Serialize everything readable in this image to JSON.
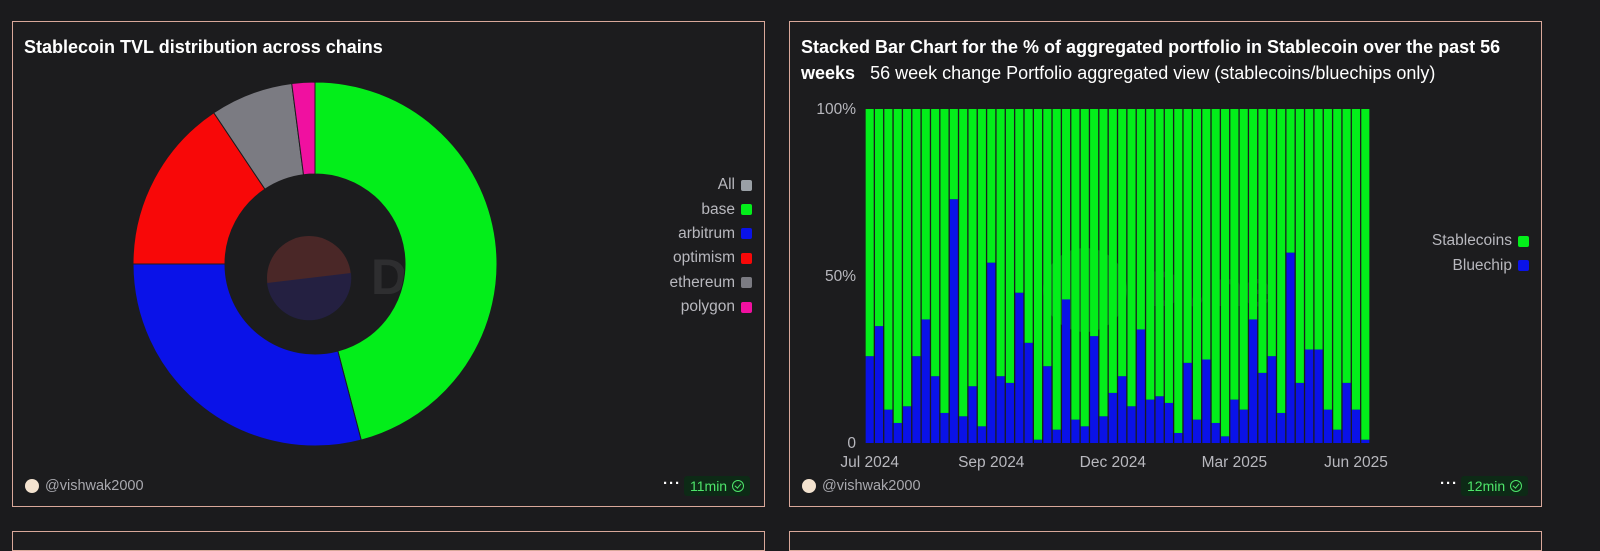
{
  "colors": {
    "background": "#1b1b1d",
    "card_border": "#d9a89a",
    "badge_text": "#4ee56a",
    "stablecoins": "#03ee1a",
    "bluechip": "#0a12e8"
  },
  "left_card": {
    "title": "Stablecoin TVL distribution across chains",
    "watermark": "Dune",
    "legend": [
      {
        "label": "All",
        "color": "#9aa0a6"
      },
      {
        "label": "base",
        "color": "#03ee1a"
      },
      {
        "label": "arbitrum",
        "color": "#0a12e8"
      },
      {
        "label": "optimism",
        "color": "#f80808"
      },
      {
        "label": "ethereum",
        "color": "#7b7b82"
      },
      {
        "label": "polygon",
        "color": "#f010a0"
      }
    ],
    "footer": {
      "author": "@vishwak2000",
      "more_icon": "more-horizontal-icon",
      "time": "11min"
    }
  },
  "right_card": {
    "title": "Stacked Bar Chart for the % of aggregated portfolio in Stablecoin over the past 56 weeks",
    "subtitle": "56 week change Portfolio aggregated view (stablecoins/bluechips only)",
    "watermark": "Dune",
    "legend": [
      {
        "label": "Stablecoins",
        "color": "#03ee1a"
      },
      {
        "label": "Bluechip",
        "color": "#0a12e8"
      }
    ],
    "footer": {
      "author": "@vishwak2000",
      "more_icon": "more-horizontal-icon",
      "time": "12min"
    }
  },
  "chart_data": [
    {
      "type": "pie",
      "title": "Stablecoin TVL distribution across chains",
      "donut": true,
      "categories": [
        "All",
        "base",
        "arbitrum",
        "optimism",
        "ethereum",
        "polygon"
      ],
      "values": [
        0,
        45.0,
        28.5,
        15.3,
        7.2,
        2.0
      ],
      "colors": [
        "#9aa0a6",
        "#03ee1a",
        "#0a12e8",
        "#f80808",
        "#7b7b82",
        "#f010a0"
      ],
      "legend_position": "right"
    },
    {
      "type": "bar",
      "stacked": true,
      "title": "Stacked Bar Chart for the % of aggregated portfolio in Stablecoin over the past 56 weeks",
      "x_tick_labels": [
        "Jul 2024",
        "Sep 2024",
        "Dec 2024",
        "Mar 2025",
        "Jun 2025"
      ],
      "x_tick_bar_index": [
        0,
        13,
        26,
        39,
        52
      ],
      "y_tick_labels": [
        "0",
        "50%",
        "100%"
      ],
      "ylim": [
        0,
        100
      ],
      "series": [
        {
          "name": "Bluechip",
          "color": "#0a12e8",
          "values": [
            26,
            35,
            10,
            6,
            11,
            26,
            37,
            20,
            9,
            73,
            8,
            17,
            5,
            54,
            20,
            18,
            45,
            30,
            1,
            23,
            4,
            43,
            7,
            5,
            32,
            8,
            15,
            20,
            11,
            34,
            13,
            14,
            12,
            3,
            24,
            7,
            25,
            6,
            2,
            13,
            10,
            37,
            21,
            26,
            9,
            57,
            18,
            28,
            28,
            10,
            4,
            18,
            10,
            1
          ]
        },
        {
          "name": "Stablecoins",
          "color": "#03ee1a",
          "values": [
            74,
            65,
            90,
            94,
            89,
            74,
            63,
            80,
            91,
            27,
            92,
            83,
            95,
            46,
            80,
            82,
            55,
            70,
            99,
            77,
            96,
            57,
            93,
            95,
            68,
            92,
            85,
            80,
            89,
            66,
            87,
            86,
            88,
            97,
            76,
            93,
            75,
            94,
            98,
            87,
            90,
            63,
            79,
            74,
            91,
            43,
            82,
            72,
            72,
            90,
            96,
            82,
            90,
            99
          ]
        }
      ],
      "legend_position": "right"
    }
  ]
}
